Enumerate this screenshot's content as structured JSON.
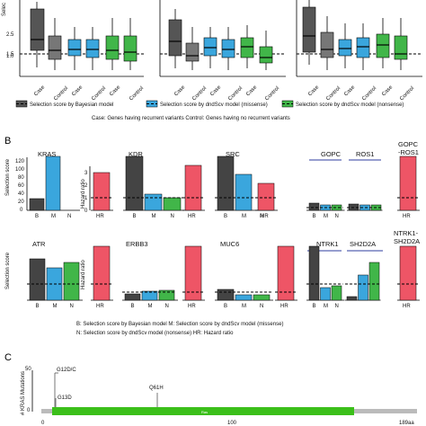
{
  "panel_a": {
    "y_axis_label": "Selec",
    "y_ticks": [
      "2.5",
      "1.5",
      "1.0"
    ],
    "x_labels": [
      "Case",
      "Control",
      "Case",
      "Control",
      "Case",
      "Control"
    ],
    "legend": [
      {
        "label": "Selection score by Bayesian model",
        "color": "#444444"
      },
      {
        "label": "Selection score by dndScv model (missense)",
        "color": "#3aa6dd"
      },
      {
        "label": "Selection score by dndScv model (nonsense)",
        "color": "#41b649"
      }
    ],
    "caption": "Case: Genes having recurrent variants   Control: Genes having no recurrent variants",
    "colors": {
      "bayes": "#444444",
      "missense": "#3aa6dd",
      "nonsense": "#41b649"
    }
  },
  "panel_b": {
    "label": "B",
    "selection_axis_label": "Selection score",
    "hazard_axis_label": "Hazard ratio",
    "bar_labels": [
      "B",
      "M",
      "N"
    ],
    "hr_label": "HR",
    "genes": [
      "KRAS",
      "KDR",
      "SRC",
      "GOPC",
      "ROS1",
      "GOPC\n-ROS1",
      "ATR",
      "ERBB3",
      "MUC6",
      "NTRK1",
      "SH2D2A",
      "NTRK1-\nSH2D2A"
    ],
    "kras_ticks": [
      "0",
      "20",
      "40",
      "60",
      "80",
      "100",
      "120"
    ],
    "hr_ticks": [
      "0",
      "1",
      "2",
      "3",
      "4"
    ],
    "legend_lines": [
      "B: Selection score by Bayesian model   M: Selection score by dndScv model (missense)",
      "N: Selection score by dndScv model (nonsense)   HR: Hazard ratio"
    ],
    "colors": {
      "bayes": "#444444",
      "missense": "#3aa6dd",
      "nonsense": "#41b649",
      "hr": "#ee5566"
    }
  },
  "panel_c": {
    "label": "C",
    "y_axis_label": "# KRAS Mutations",
    "y_ticks": [
      "0",
      "50"
    ],
    "mutations": [
      {
        "label": "G12D/C",
        "position": 12
      },
      {
        "label": "G13D",
        "position": 13
      },
      {
        "label": "Q61H",
        "position": 61
      }
    ],
    "domain_label": "Ras",
    "x_ticks": [
      "0",
      "100",
      "189aa"
    ],
    "colors": {
      "domain": "#3bbf1a",
      "backbone": "#bbbbbb"
    }
  }
}
